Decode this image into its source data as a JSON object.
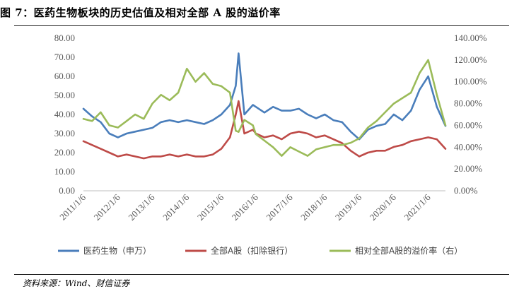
{
  "figure": {
    "title": "图 7：医药生物板块的历史估值及相对全部 A 股的溢价率",
    "source": "资料来源：Wind、财信证券"
  },
  "chart_data": {
    "type": "line",
    "x_tick_labels": [
      "2011/1/6",
      "2012/1/6",
      "2013/1/6",
      "2014/1/6",
      "2015/1/6",
      "2016/1/6",
      "2017/1/6",
      "2018/1/6",
      "2019/1/6",
      "2020/1/6",
      "2021/1/6"
    ],
    "x": [
      "2011-01",
      "2011-04",
      "2011-07",
      "2011-10",
      "2012-01",
      "2012-04",
      "2012-07",
      "2012-10",
      "2013-01",
      "2013-04",
      "2013-07",
      "2013-10",
      "2014-01",
      "2014-04",
      "2014-07",
      "2014-10",
      "2015-01",
      "2015-04",
      "2015-06",
      "2015-07",
      "2015-09",
      "2015-12",
      "2016-01",
      "2016-04",
      "2016-07",
      "2016-10",
      "2017-01",
      "2017-04",
      "2017-07",
      "2017-10",
      "2018-01",
      "2018-04",
      "2018-07",
      "2018-10",
      "2019-01",
      "2019-04",
      "2019-07",
      "2019-10",
      "2020-01",
      "2020-04",
      "2020-07",
      "2020-10",
      "2021-01",
      "2021-04",
      "2021-07"
    ],
    "y_left": {
      "min": 0,
      "max": 80,
      "ticks": [
        "0.00",
        "10.00",
        "20.00",
        "30.00",
        "40.00",
        "50.00",
        "60.00",
        "70.00",
        "80.00"
      ]
    },
    "y_right": {
      "min": 0,
      "max": 140,
      "ticks": [
        "0.00%",
        "20.00%",
        "40.00%",
        "60.00%",
        "80.00%",
        "100.00%",
        "120.00%",
        "140.00%"
      ]
    },
    "grid": false,
    "legend_position": "bottom",
    "series": [
      {
        "name": "医药生物（申万）",
        "axis": "left",
        "color": "#4a7ebb",
        "values": [
          43,
          39,
          36,
          30,
          28,
          30,
          31,
          32,
          33,
          36,
          37,
          36,
          37,
          36,
          35,
          37,
          40,
          45,
          55,
          72,
          40,
          45,
          44,
          41,
          44,
          42,
          42,
          43,
          40,
          38,
          40,
          37,
          36,
          31,
          27,
          32,
          34,
          35,
          40,
          37,
          42,
          53,
          60,
          44,
          34
        ]
      },
      {
        "name": "全部A股（扣除银行）",
        "axis": "left",
        "color": "#be4b48",
        "values": [
          26,
          24,
          22,
          20,
          18,
          19,
          18,
          17,
          18,
          18,
          19,
          18,
          19,
          18,
          18,
          19,
          22,
          28,
          40,
          47,
          30,
          32,
          30,
          28,
          29,
          27,
          30,
          31,
          30,
          28,
          29,
          27,
          25,
          21,
          18,
          20,
          21,
          21,
          23,
          24,
          26,
          27,
          28,
          27,
          22
        ]
      },
      {
        "name": "相对全部A股的溢价率（右）",
        "axis": "right",
        "color": "#9bbb59",
        "values": [
          66,
          64,
          72,
          60,
          58,
          64,
          70,
          66,
          80,
          88,
          83,
          90,
          112,
          100,
          108,
          98,
          96,
          90,
          55,
          54,
          65,
          60,
          52,
          46,
          40,
          32,
          40,
          36,
          32,
          38,
          40,
          42,
          42,
          44,
          48,
          58,
          64,
          72,
          80,
          85,
          90,
          108,
          120,
          88,
          60
        ]
      }
    ]
  }
}
